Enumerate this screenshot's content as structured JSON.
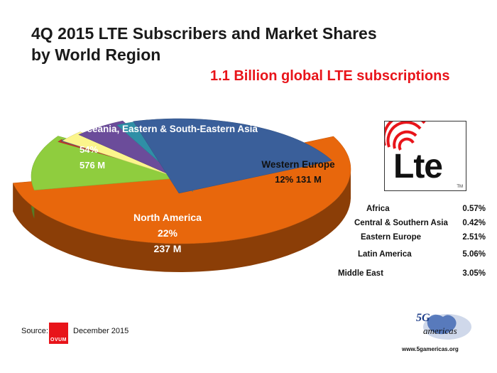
{
  "title_line1": "4Q 2015 LTE Subscribers and Market Shares",
  "title_line2": "by World Region",
  "subtitle": "1.1 Billion global LTE subscriptions",
  "chart_data": {
    "type": "pie",
    "title": "4Q 2015 LTE Subscribers and Market Shares by World Region",
    "subtitle": "1.1 Billion global LTE subscriptions",
    "slices": [
      {
        "label": "Oceania, Eastern & South-Eastern Asia",
        "percent": 54,
        "percent_label": "54%",
        "value_label": "576 M",
        "color": "#e8670c"
      },
      {
        "label": "Western Europe",
        "percent": 12,
        "percent_label": "12%",
        "value_label": "131 M",
        "color": "#8fcd3e"
      },
      {
        "label": "Africa",
        "percent": 0.57,
        "percent_label": "0.57%",
        "color": "#c0392b"
      },
      {
        "label": "Central & Southern Asia",
        "percent": 0.42,
        "percent_label": "0.42%",
        "color": "#3a5fa0"
      },
      {
        "label": "Eastern Europe",
        "percent": 2.51,
        "percent_label": "2.51%",
        "color": "#fbf58c"
      },
      {
        "label": "Latin America",
        "percent": 5.06,
        "percent_label": "5.06%",
        "color": "#6b4c9a"
      },
      {
        "label": "Middle East",
        "percent": 3.05,
        "percent_label": "3.05%",
        "color": "#2f8fa6"
      },
      {
        "label": "North America",
        "percent": 22,
        "percent_label": "22%",
        "value_label": "237 M",
        "color": "#3a5f9a"
      }
    ]
  },
  "logo": {
    "text": "Lte",
    "tm": "TM"
  },
  "source": {
    "label": "Source:",
    "org": "OVUM",
    "date": "December 2015"
  },
  "brand": {
    "name": "americas",
    "prefix": "5G",
    "url": "www.5gamericas.org"
  }
}
